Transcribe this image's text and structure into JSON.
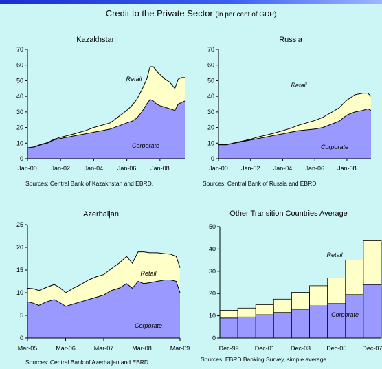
{
  "header": {
    "title": "Credit to the Private Sector",
    "subtitle": "(in per cent of GDP)"
  },
  "colors": {
    "background": "#ccf5f5",
    "retail": "#ffffc8",
    "corporate": "#9999ff",
    "outline": "#000000"
  },
  "chart_data": [
    {
      "type": "area",
      "title": "Kazakhstan",
      "source": "Sources: Central Bank of Kazakhstan and EBRD.",
      "xticks": [
        "Jan-00",
        "Jan-02",
        "Jan-04",
        "Jan-06",
        "Jan-08"
      ],
      "xrange": [
        2000.0,
        2009.5
      ],
      "ylim": [
        0,
        70
      ],
      "yticks": [
        0,
        10,
        20,
        30,
        40,
        50,
        60,
        70
      ],
      "x": [
        2000.0,
        2000.4,
        2000.8,
        2001.2,
        2001.6,
        2002.0,
        2002.5,
        2003.0,
        2003.5,
        2004.0,
        2004.5,
        2005.0,
        2005.5,
        2006.0,
        2006.3,
        2006.6,
        2006.9,
        2007.2,
        2007.4,
        2007.6,
        2007.8,
        2008.0,
        2008.3,
        2008.6,
        2008.9,
        2009.1,
        2009.3,
        2009.5
      ],
      "series": [
        {
          "name": "Corporate",
          "values": [
            7,
            7.5,
            9,
            10,
            12,
            13,
            14,
            15,
            16,
            17,
            18,
            19,
            21,
            23,
            24,
            26,
            30,
            35,
            38,
            37,
            35,
            34,
            33,
            32,
            31,
            35,
            36,
            37
          ]
        },
        {
          "name": "Retail",
          "values": [
            0,
            0.1,
            0.2,
            0.3,
            0.4,
            0.8,
            1,
            1.5,
            2,
            3,
            3.5,
            4,
            6,
            8,
            10,
            12,
            14,
            16,
            21,
            22,
            21,
            20,
            18,
            17,
            14,
            16,
            16,
            15
          ]
        }
      ]
    },
    {
      "type": "area",
      "title": "Russia",
      "source": "Sources: Central Bank of Russia and EBRD.",
      "xticks": [
        "Jan-00",
        "Jan-02",
        "Jan-04",
        "Jan-06",
        "Jan-08"
      ],
      "xrange": [
        2000.0,
        2009.5
      ],
      "ylim": [
        0,
        70
      ],
      "yticks": [
        0,
        10,
        20,
        30,
        40,
        50,
        60,
        70
      ],
      "x": [
        2000.0,
        2000.5,
        2001.0,
        2001.5,
        2002.0,
        2002.5,
        2003.0,
        2003.5,
        2004.0,
        2004.5,
        2005.0,
        2005.5,
        2006.0,
        2006.5,
        2007.0,
        2007.5,
        2008.0,
        2008.5,
        2009.0,
        2009.3,
        2009.5
      ],
      "series": [
        {
          "name": "Corporate",
          "values": [
            9,
            9,
            10,
            11,
            12,
            13,
            14,
            15,
            16,
            17,
            18,
            18.5,
            19,
            20,
            22,
            24,
            28,
            30,
            31,
            32,
            31
          ]
        },
        {
          "name": "Retail",
          "values": [
            0,
            0,
            0.2,
            0.3,
            0.5,
            1,
            1.2,
            1.5,
            2,
            2.5,
            3.5,
            4.5,
            5.5,
            6.5,
            7.5,
            8.5,
            9.5,
            11,
            11,
            10,
            9
          ]
        }
      ]
    },
    {
      "type": "area",
      "title": "Azerbaijan",
      "source": "Sources: Central Bank of Azerbaijan and EBRD.",
      "xticks": [
        "Mar-05",
        "Mar-06",
        "Mar-07",
        "Mar-08",
        "Mar-09"
      ],
      "xrange": [
        2005.0,
        2009.0
      ],
      "ylim": [
        0,
        25
      ],
      "yticks": [
        0,
        5,
        10,
        15,
        20,
        25
      ],
      "x": [
        2005.0,
        2005.15,
        2005.3,
        2005.5,
        2005.7,
        2005.85,
        2006.0,
        2006.2,
        2006.4,
        2006.6,
        2006.8,
        2007.0,
        2007.2,
        2007.4,
        2007.6,
        2007.75,
        2007.9,
        2008.05,
        2008.2,
        2008.4,
        2008.6,
        2008.75,
        2008.9,
        2009.0
      ],
      "series": [
        {
          "name": "Corporate",
          "values": [
            8,
            7.7,
            7.2,
            8,
            8.5,
            7.8,
            7,
            7.5,
            8,
            8.5,
            9,
            9.5,
            10.5,
            11,
            12,
            11,
            12.5,
            12,
            12.2,
            12.5,
            12.8,
            12.8,
            12.5,
            10
          ]
        },
        {
          "name": "Retail",
          "values": [
            3,
            3.2,
            3.3,
            3.2,
            3.3,
            3.3,
            3,
            3.5,
            3.8,
            4.3,
            4.5,
            4.5,
            4.8,
            5.5,
            6,
            5.5,
            6.5,
            7,
            6.6,
            6.3,
            5.8,
            5.7,
            5.5,
            5.5
          ]
        }
      ]
    },
    {
      "type": "bar",
      "stacked": true,
      "title": "Other Transition Countries Average",
      "source": "Sources: EBRD Banking Survey, simple average.",
      "categories": [
        "Dec-99",
        "Dec-00",
        "Dec-01",
        "Dec-02",
        "Dec-03",
        "Dec-04",
        "Dec-05",
        "Dec-06",
        "Dec-07"
      ],
      "xticks": [
        "Dec-99",
        "Dec-01",
        "Dec-03",
        "Dec-05",
        "Dec-07"
      ],
      "ylim": [
        0,
        50
      ],
      "yticks": [
        0,
        10,
        20,
        30,
        40,
        50
      ],
      "series": [
        {
          "name": "Corporate",
          "values": [
            9,
            9.5,
            10.5,
            11.5,
            13,
            14.5,
            15.5,
            19.5,
            24
          ]
        },
        {
          "name": "Retail",
          "values": [
            3.5,
            4,
            4.5,
            6,
            7.5,
            9,
            11.5,
            15.5,
            20
          ]
        }
      ]
    }
  ]
}
